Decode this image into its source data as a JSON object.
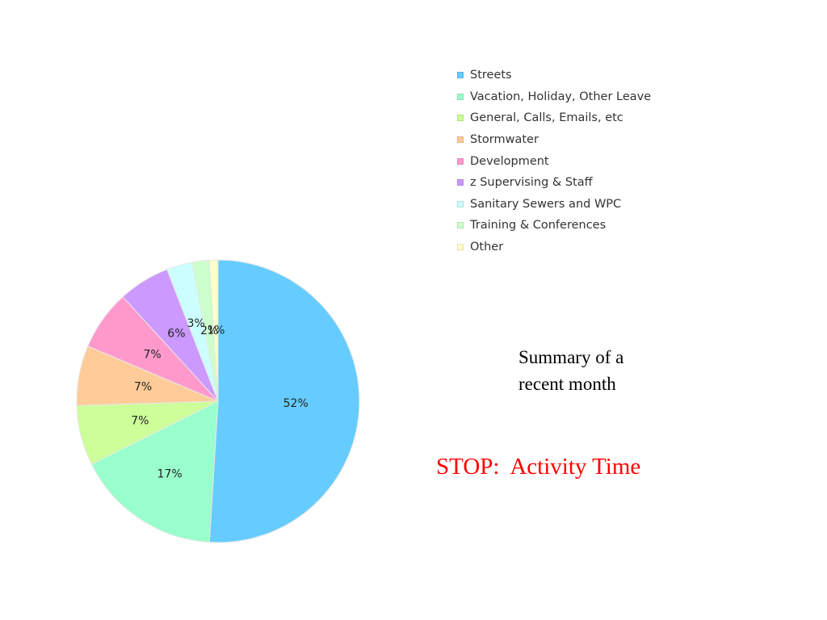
{
  "chart_data": {
    "type": "pie",
    "start_angle": "12 o'clock",
    "direction": "clockwise",
    "legend_placement": "top-right",
    "slices": [
      {
        "name": "Streets",
        "value": 52,
        "label": "52%",
        "color": "#66ccff"
      },
      {
        "name": "Vacation, Holiday, Other Leave",
        "value": 17,
        "label": "17%",
        "color": "#99ffcc"
      },
      {
        "name": "General, Calls, Emails, etc",
        "value": 7,
        "label": "7%",
        "color": "#ccff99"
      },
      {
        "name": "Stormwater",
        "value": 7,
        "label": "7%",
        "color": "#ffcc99"
      },
      {
        "name": "Development",
        "value": 7,
        "label": "7%",
        "color": "#ff99cc"
      },
      {
        "name": "z Supervising & Staff",
        "value": 6,
        "label": "6%",
        "color": "#cc99ff"
      },
      {
        "name": "Sanitary Sewers and WPC",
        "value": 3,
        "label": "3%",
        "color": "#ccffff"
      },
      {
        "name": "Training & Conferences",
        "value": 2,
        "label": "2%",
        "color": "#ccffcc"
      },
      {
        "name": "Other",
        "value": 1,
        "label": "1%",
        "color": "#ffffcc"
      }
    ]
  },
  "legend": {
    "items": [
      {
        "label": "Streets",
        "color": "#66ccff"
      },
      {
        "label": "Vacation, Holiday, Other Leave",
        "color": "#99ffcc"
      },
      {
        "label": "General, Calls, Emails, etc",
        "color": "#ccff99"
      },
      {
        "label": "Stormwater",
        "color": "#ffcc99"
      },
      {
        "label": "Development",
        "color": "#ff99cc"
      },
      {
        "label": "z Supervising & Staff",
        "color": "#cc99ff"
      },
      {
        "label": "Sanitary Sewers and WPC",
        "color": "#ccffff"
      },
      {
        "label": "Training & Conferences",
        "color": "#ccffcc"
      },
      {
        "label": "Other",
        "color": "#ffffcc"
      }
    ]
  },
  "caption": {
    "line1": "Summary of a",
    "line2": "recent month"
  },
  "title": {
    "text": "STOP:  Activity Time",
    "color": "#ff0000"
  }
}
